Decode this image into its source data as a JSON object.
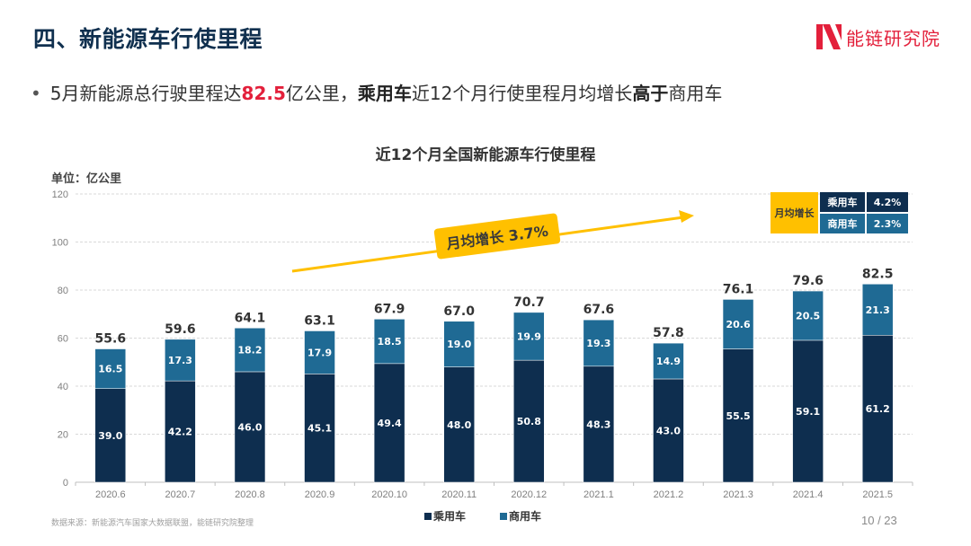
{
  "header": {
    "title": "四、新能源车行使里程",
    "logo_text": "能链研究院",
    "brand_color": "#e3203b"
  },
  "bullet": {
    "part1": "5月新能源总行驶里程达",
    "highlight_value": "82.5",
    "part2": "亿公里，",
    "bold1": "乘用车",
    "part3": "近12个月行使里程月均增长",
    "bold2": "高于",
    "part4": "商用车"
  },
  "growth_badge": "月均增长 3.7%",
  "growth_table": {
    "header": "月均增长",
    "rows": [
      {
        "label": "乘用车",
        "value": "4.2%"
      },
      {
        "label": "商用车",
        "value": "2.3%"
      }
    ]
  },
  "chart_data": {
    "type": "bar",
    "stacked": true,
    "title": "近12个月全国新能源车行使里程",
    "ylabel": "单位：亿公里",
    "xlabel": "",
    "ylim": [
      0,
      120
    ],
    "yticks": [
      0,
      20,
      40,
      60,
      80,
      100,
      120
    ],
    "grid": true,
    "legend_position": "bottom",
    "categories": [
      "2020.6",
      "2020.7",
      "2020.8",
      "2020.9",
      "2020.10",
      "2020.11",
      "2020.12",
      "2021.1",
      "2021.2",
      "2021.3",
      "2021.4",
      "2021.5"
    ],
    "series": [
      {
        "name": "乘用车",
        "color": "#0e2e4f",
        "values": [
          39.0,
          42.2,
          46.0,
          45.1,
          49.4,
          48.0,
          50.8,
          48.3,
          43.0,
          55.5,
          59.1,
          61.2
        ]
      },
      {
        "name": "商用车",
        "color": "#1f6a94",
        "values": [
          16.5,
          17.3,
          18.2,
          17.9,
          18.5,
          19.0,
          19.9,
          19.3,
          14.9,
          20.6,
          20.5,
          21.3
        ]
      }
    ],
    "totals": [
      55.6,
      59.6,
      64.1,
      63.1,
      67.9,
      67.0,
      70.7,
      67.6,
      57.8,
      76.1,
      79.6,
      82.5
    ],
    "annotations": [
      "月均增长 3.7%"
    ]
  },
  "footer": {
    "source": "数据来源：新能源汽车国家大数据联盟，能链研究院整理",
    "page": "10 / 23"
  }
}
